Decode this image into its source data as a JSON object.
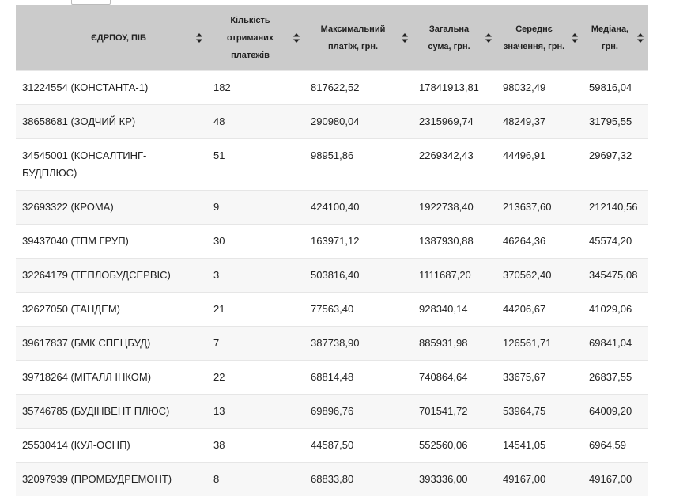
{
  "table": {
    "headers": [
      "ЄДРПОУ, ПІБ",
      "Кількість отриманих платежів",
      "Максимальний платіж, грн.",
      "Загальна сума, грн.",
      "Середнє значення, грн.",
      "Медіана, грн."
    ],
    "rows": [
      [
        "31224554 (КОНСТАНТА-1)",
        "182",
        "817622,52",
        "17841913,81",
        "98032,49",
        "59816,04"
      ],
      [
        "38658681 (ЗОДЧИЙ КР)",
        "48",
        "290980,04",
        "2315969,74",
        "48249,37",
        "31795,55"
      ],
      [
        "34545001 (КОНСАЛТИНГ-БУДПЛЮС)",
        "51",
        "98951,86",
        "2269342,43",
        "44496,91",
        "29697,32"
      ],
      [
        "32693322 (КРОМА)",
        "9",
        "424100,40",
        "1922738,40",
        "213637,60",
        "212140,56"
      ],
      [
        "39437040 (ТПМ ГРУП)",
        "30",
        "163971,12",
        "1387930,88",
        "46264,36",
        "45574,20"
      ],
      [
        "32264179 (ТЕПЛОБУДСЕРВІС)",
        "3",
        "503816,40",
        "1111687,20",
        "370562,40",
        "345475,08"
      ],
      [
        "32627050 (ТАНДЕМ)",
        "21",
        "77563,40",
        "928340,14",
        "44206,67",
        "41029,06"
      ],
      [
        "39617837 (БМК СПЕЦБУД)",
        "7",
        "387738,90",
        "885931,98",
        "126561,71",
        "69841,04"
      ],
      [
        "39718264 (МІТАЛЛ ІНКОМ)",
        "22",
        "68814,48",
        "740864,64",
        "33675,67",
        "26837,55"
      ],
      [
        "35746785 (БУДІНВЕНТ ПЛЮС)",
        "13",
        "69896,76",
        "701541,72",
        "53964,75",
        "64009,20"
      ],
      [
        "25530414 (КУЛ-ОСНП)",
        "38",
        "44587,50",
        "552560,06",
        "14541,05",
        "6964,59"
      ],
      [
        "32097939 (ПРОМБУДРЕМОНТ)",
        "8",
        "68833,80",
        "393336,00",
        "49167,00",
        "49167,00"
      ]
    ]
  }
}
